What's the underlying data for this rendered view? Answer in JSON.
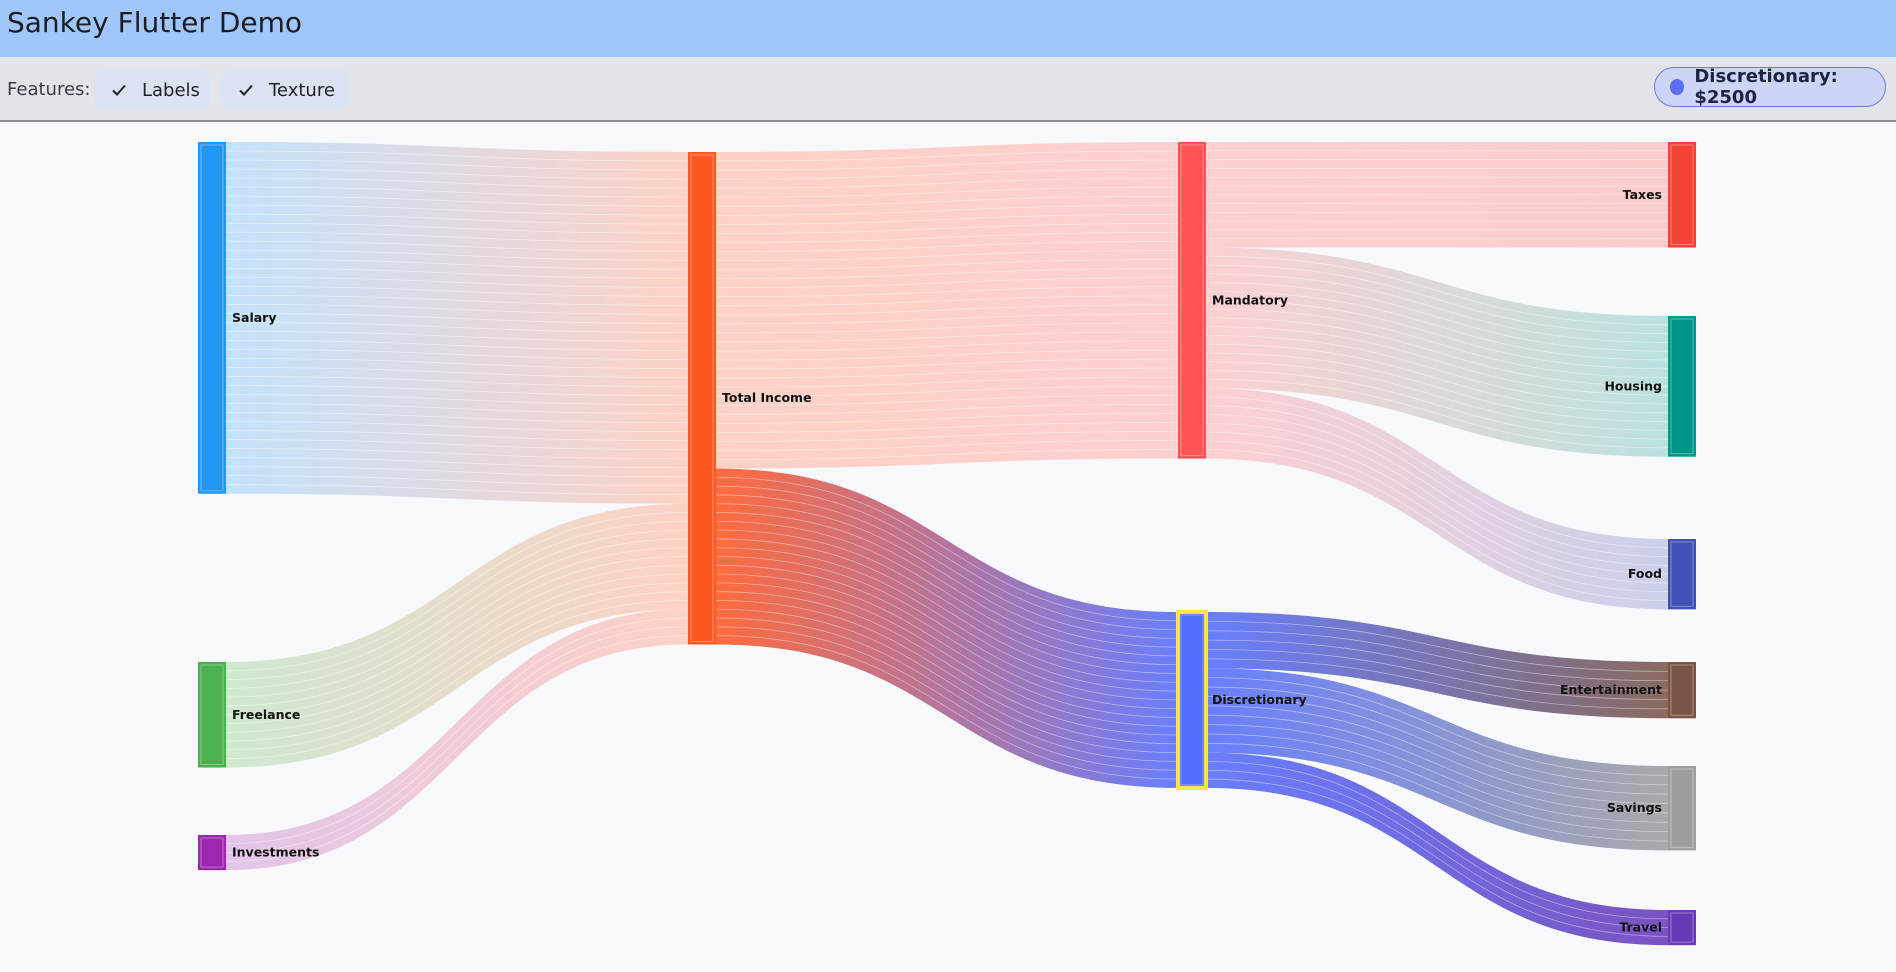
{
  "app": {
    "title": "Sankey Flutter Demo"
  },
  "toolbar": {
    "features_label": "Features:",
    "chips": [
      {
        "label": "Labels",
        "checked": true,
        "icon": "check-icon"
      },
      {
        "label": "Texture",
        "checked": true,
        "icon": "check-icon"
      }
    ],
    "selected_node": {
      "text": "Discretionary: $2500",
      "color": "#5a6ef2"
    }
  },
  "diagram": {
    "type": "sankey",
    "nodes": [
      {
        "id": "salary",
        "label": "Salary",
        "column": 0,
        "color": "#2196f3"
      },
      {
        "id": "freelance",
        "label": "Freelance",
        "column": 0,
        "color": "#4caf50"
      },
      {
        "id": "investments",
        "label": "Investments",
        "column": 0,
        "color": "#9c27b0"
      },
      {
        "id": "total",
        "label": "Total Income",
        "column": 1,
        "color": "#ff5722"
      },
      {
        "id": "mandatory",
        "label": "Mandatory",
        "column": 2,
        "color": "#ff5252"
      },
      {
        "id": "discretionary",
        "label": "Discretionary",
        "column": 2,
        "color": "#536dfe",
        "selected": true
      },
      {
        "id": "taxes",
        "label": "Taxes",
        "column": 3,
        "color": "#f44336"
      },
      {
        "id": "housing",
        "label": "Housing",
        "column": 3,
        "color": "#009688"
      },
      {
        "id": "food",
        "label": "Food",
        "column": 3,
        "color": "#3f51b5"
      },
      {
        "id": "entertainment",
        "label": "Entertainment",
        "column": 3,
        "color": "#795548"
      },
      {
        "id": "savings",
        "label": "Savings",
        "column": 3,
        "color": "#9e9e9e"
      },
      {
        "id": "travel",
        "label": "Travel",
        "column": 3,
        "color": "#673ab7"
      }
    ],
    "links": [
      {
        "source": "salary",
        "target": "total",
        "value": 5000
      },
      {
        "source": "freelance",
        "target": "total",
        "value": 1500
      },
      {
        "source": "investments",
        "target": "total",
        "value": 500
      },
      {
        "source": "total",
        "target": "mandatory",
        "value": 4500
      },
      {
        "source": "total",
        "target": "discretionary",
        "value": 2500
      },
      {
        "source": "mandatory",
        "target": "taxes",
        "value": 1500
      },
      {
        "source": "mandatory",
        "target": "housing",
        "value": 2000
      },
      {
        "source": "mandatory",
        "target": "food",
        "value": 1000
      },
      {
        "source": "discretionary",
        "target": "entertainment",
        "value": 800
      },
      {
        "source": "discretionary",
        "target": "savings",
        "value": 1200
      },
      {
        "source": "discretionary",
        "target": "travel",
        "value": 500
      }
    ],
    "selected_color": "#fbe54a"
  }
}
